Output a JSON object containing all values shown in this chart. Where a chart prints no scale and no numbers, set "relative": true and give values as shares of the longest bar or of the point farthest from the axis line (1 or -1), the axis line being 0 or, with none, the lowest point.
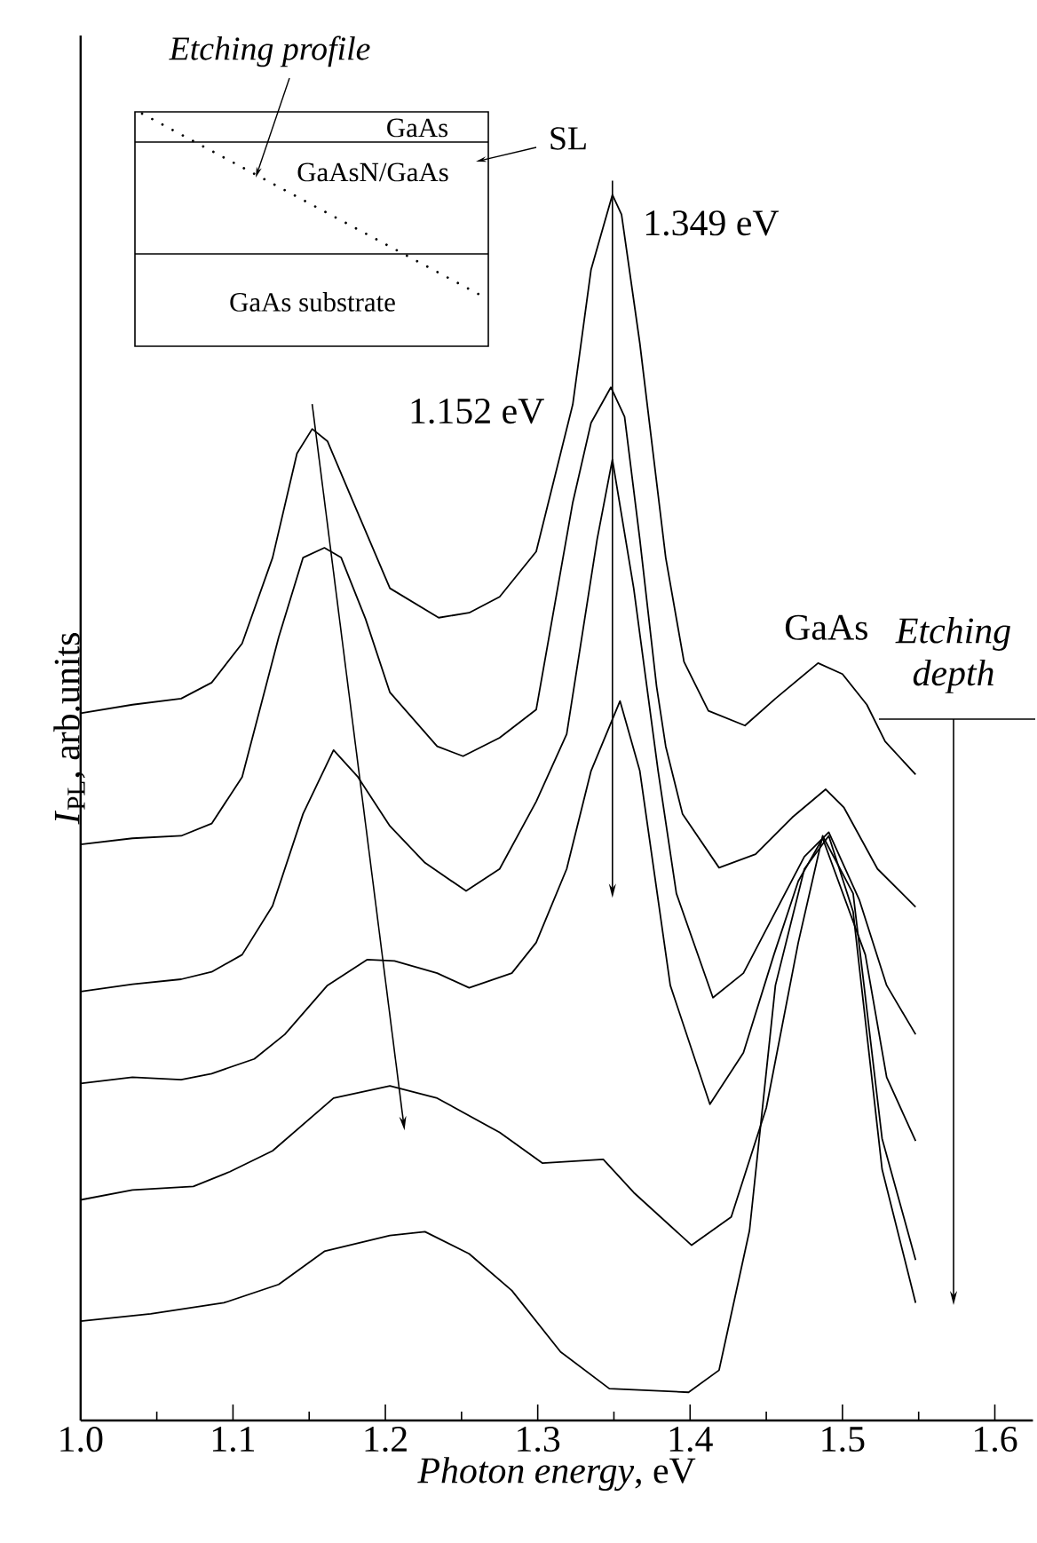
{
  "chart_data": {
    "type": "line",
    "relative": true,
    "xlabel": "*Photon energy*, eV",
    "ylabel": "*I*$_{PL}$, arb.units",
    "xlim": [
      1.0,
      1.625
    ],
    "xticks": [
      {
        "value": 1.0,
        "label": "1.0"
      },
      {
        "value": 1.05,
        "label": null
      },
      {
        "value": 1.1,
        "label": "1.1"
      },
      {
        "value": 1.15,
        "label": null
      },
      {
        "value": 1.2,
        "label": "1.2"
      },
      {
        "value": 1.25,
        "label": null
      },
      {
        "value": 1.3,
        "label": "1.3"
      },
      {
        "value": 1.35,
        "label": null
      },
      {
        "value": 1.4,
        "label": "1.4"
      },
      {
        "value": 1.45,
        "label": null
      },
      {
        "value": 1.5,
        "label": "1.5"
      },
      {
        "value": 1.55,
        "label": null
      },
      {
        "value": 1.6,
        "label": "1.6"
      }
    ],
    "series": [
      {
        "color": "#000000",
        "x": [
          1.0,
          1.034,
          1.066,
          1.086,
          1.106,
          1.126,
          1.142,
          1.152,
          1.162,
          1.179,
          1.203,
          1.235,
          1.255,
          1.275,
          1.299,
          1.323,
          1.335,
          1.349,
          1.355,
          1.367,
          1.384,
          1.396,
          1.412,
          1.436,
          1.456,
          1.484,
          1.5,
          1.516,
          1.528,
          1.548
        ],
        "values": [
          0.577,
          0.584,
          0.589,
          0.602,
          0.634,
          0.704,
          0.789,
          0.809,
          0.799,
          0.749,
          0.679,
          0.655,
          0.659,
          0.672,
          0.709,
          0.829,
          0.939,
          1.0,
          0.984,
          0.879,
          0.704,
          0.619,
          0.579,
          0.567,
          0.589,
          0.618,
          0.609,
          0.584,
          0.554,
          0.527
        ]
      },
      {
        "color": "#000000",
        "x": [
          1.0,
          1.034,
          1.066,
          1.086,
          1.106,
          1.13,
          1.146,
          1.16,
          1.171,
          1.187,
          1.203,
          1.234,
          1.251,
          1.275,
          1.299,
          1.323,
          1.335,
          1.348,
          1.357,
          1.367,
          1.378,
          1.384,
          1.395,
          1.419,
          1.443,
          1.467,
          1.489,
          1.501,
          1.523,
          1.548
        ],
        "values": [
          0.47,
          0.475,
          0.477,
          0.487,
          0.525,
          0.639,
          0.704,
          0.712,
          0.704,
          0.654,
          0.594,
          0.55,
          0.542,
          0.557,
          0.58,
          0.749,
          0.814,
          0.843,
          0.819,
          0.719,
          0.599,
          0.55,
          0.495,
          0.451,
          0.462,
          0.492,
          0.515,
          0.5,
          0.45,
          0.419
        ]
      },
      {
        "color": "#000000",
        "x": [
          1.0,
          1.034,
          1.066,
          1.086,
          1.106,
          1.126,
          1.146,
          1.166,
          1.182,
          1.203,
          1.226,
          1.253,
          1.275,
          1.299,
          1.319,
          1.339,
          1.349,
          1.363,
          1.379,
          1.391,
          1.415,
          1.435,
          1.456,
          1.475,
          1.491,
          1.511,
          1.529,
          1.548
        ],
        "values": [
          0.35,
          0.356,
          0.36,
          0.366,
          0.38,
          0.42,
          0.495,
          0.547,
          0.525,
          0.485,
          0.455,
          0.432,
          0.45,
          0.505,
          0.56,
          0.719,
          0.784,
          0.679,
          0.53,
          0.43,
          0.345,
          0.365,
          0.415,
          0.46,
          0.48,
          0.425,
          0.355,
          0.315
        ]
      },
      {
        "color": "#000000",
        "x": [
          1.0,
          1.034,
          1.066,
          1.086,
          1.114,
          1.134,
          1.162,
          1.188,
          1.206,
          1.234,
          1.255,
          1.283,
          1.299,
          1.319,
          1.335,
          1.354,
          1.367,
          1.387,
          1.413,
          1.435,
          1.455,
          1.471,
          1.487,
          1.515,
          1.529,
          1.548
        ],
        "values": [
          0.275,
          0.28,
          0.278,
          0.283,
          0.295,
          0.315,
          0.355,
          0.376,
          0.375,
          0.365,
          0.353,
          0.365,
          0.39,
          0.45,
          0.53,
          0.587,
          0.53,
          0.355,
          0.258,
          0.3,
          0.38,
          0.44,
          0.475,
          0.38,
          0.28,
          0.228
        ]
      },
      {
        "color": "#000000",
        "x": [
          1.0,
          1.034,
          1.074,
          1.098,
          1.126,
          1.166,
          1.203,
          1.234,
          1.275,
          1.303,
          1.343,
          1.363,
          1.401,
          1.427,
          1.45,
          1.471,
          1.487,
          1.507,
          1.526,
          1.548
        ],
        "values": [
          0.18,
          0.188,
          0.191,
          0.203,
          0.22,
          0.263,
          0.273,
          0.263,
          0.235,
          0.21,
          0.213,
          0.186,
          0.143,
          0.166,
          0.255,
          0.39,
          0.477,
          0.43,
          0.23,
          0.131
        ]
      },
      {
        "color": "#000000",
        "x": [
          1.0,
          1.046,
          1.094,
          1.13,
          1.16,
          1.203,
          1.226,
          1.255,
          1.283,
          1.315,
          1.347,
          1.399,
          1.419,
          1.439,
          1.456,
          1.475,
          1.491,
          1.507,
          1.526,
          1.548
        ],
        "values": [
          0.081,
          0.087,
          0.096,
          0.111,
          0.138,
          0.151,
          0.154,
          0.136,
          0.106,
          0.056,
          0.026,
          0.023,
          0.041,
          0.155,
          0.355,
          0.45,
          0.477,
          0.415,
          0.205,
          0.096
        ]
      }
    ],
    "annotations": [
      {
        "text": "1.152 eV",
        "x": 1.152,
        "y": 0.809
      },
      {
        "text": "1.349 eV",
        "x": 1.349,
        "y": 1.0
      },
      {
        "text": "GaAs",
        "x": 1.486,
        "y": 0.618
      },
      "Etching depth",
      "Etching profile",
      "GaAs",
      "GaAsN/GaAs",
      "SL",
      "GaAs substrate"
    ]
  }
}
